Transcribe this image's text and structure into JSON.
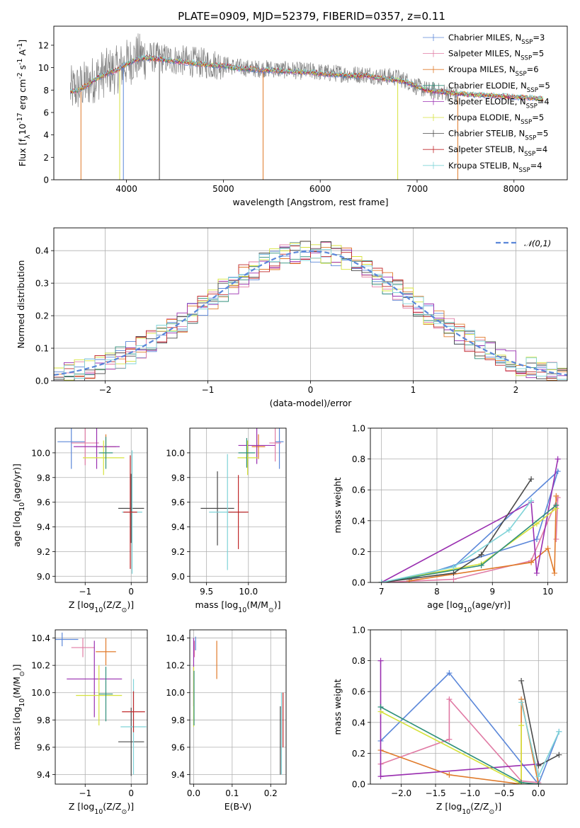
{
  "figure": {
    "title": "PLATE=0909, MJD=52379, FIBERID=0357, z=0.11"
  },
  "series_legend": [
    {
      "label": "Chabrier MILES, N$_{SSP}$=3",
      "color": "#5b87d9"
    },
    {
      "label": "Salpeter MILES, N$_{SSP}$=5",
      "color": "#e07aa4"
    },
    {
      "label": "Kroupa MILES, N$_{SSP}$=6",
      "color": "#e07a2a"
    },
    {
      "label": "Chabrier ELODIE, N$_{SSP}$=5",
      "color": "#2f8f7a"
    },
    {
      "label": "Salpeter ELODIE, N$_{SSP}$=4",
      "color": "#9a2fb0"
    },
    {
      "label": "Kroupa ELODIE, N$_{SSP}$=5",
      "color": "#d6e23b"
    },
    {
      "label": "Chabrier STELIB, N$_{SSP}$=5",
      "color": "#4a4a4a"
    },
    {
      "label": "Salpeter STELIB, N$_{SSP}$=4",
      "color": "#c0282a"
    },
    {
      "label": "Kroupa STELIB, N$_{SSP}$=4",
      "color": "#7fd3d8"
    }
  ],
  "chart_data": [
    {
      "id": "spectrum",
      "type": "line",
      "xlabel": "wavelength [Angstrom, rest frame]",
      "ylabel": "Flux [f$_{\\lambda}$10$^{-17}$ erg cm$^{-2}$ s$^{-1}$ A$^{-1}$]",
      "xlim": [
        3250,
        8550
      ],
      "ylim": [
        0,
        13.7
      ],
      "xticks": [
        4000,
        5000,
        6000,
        7000,
        8000
      ],
      "yticks": [
        0,
        2,
        4,
        6,
        8,
        10,
        12
      ],
      "grid": false,
      "legend": "upper right",
      "data_color": "#808080",
      "data_x": [
        3420,
        3500,
        3600,
        3700,
        3800,
        3900,
        4000,
        4100,
        4200,
        4300,
        4400,
        4500,
        4600,
        4700,
        4800,
        4900,
        5000,
        5100,
        5200,
        5300,
        5400,
        5500,
        5600,
        5700,
        5800,
        5900,
        6000,
        6100,
        6200,
        6300,
        6400,
        6500,
        6600,
        6700,
        6800,
        6900,
        7000,
        7100,
        7200,
        7300,
        7400
      ],
      "data_y": [
        8.0,
        8.2,
        8.6,
        9.2,
        9.6,
        9.8,
        10.4,
        10.9,
        11.0,
        10.9,
        10.8,
        10.7,
        10.6,
        10.5,
        10.4,
        10.3,
        10.3,
        10.1,
        10.0,
        9.9,
        9.9,
        9.9,
        9.8,
        9.8,
        9.7,
        9.7,
        9.6,
        9.5,
        9.5,
        9.4,
        9.4,
        9.4,
        9.2,
        9.2,
        9.1,
        8.8,
        8.3,
        8.0,
        7.9,
        7.8,
        7.6
      ],
      "model_x": [
        3420,
        3500,
        3600,
        3700,
        3800,
        3900,
        4000,
        4100,
        4200,
        4300,
        4400,
        4500,
        4600,
        4700,
        4800,
        4900,
        5000,
        5100,
        5200,
        5300,
        5400,
        5500,
        5600,
        5700,
        5800,
        5900,
        6000,
        6100,
        6200,
        6300,
        6400,
        6500,
        6600,
        6700,
        6800,
        6900,
        7000,
        7100,
        7200,
        7300,
        7400,
        7600,
        7800,
        8000,
        8200,
        8300
      ],
      "model_y": [
        7.8,
        8.0,
        8.5,
        9.1,
        9.5,
        9.8,
        10.3,
        10.7,
        10.9,
        10.8,
        10.7,
        10.6,
        10.5,
        10.4,
        10.3,
        10.2,
        10.2,
        10.0,
        9.9,
        9.9,
        9.8,
        9.8,
        9.7,
        9.7,
        9.6,
        9.6,
        9.5,
        9.4,
        9.4,
        9.3,
        9.3,
        9.3,
        9.1,
        9.0,
        8.9,
        8.7,
        8.3,
        8.0,
        7.9,
        7.8,
        7.7,
        7.6,
        7.5,
        7.4,
        7.3,
        7.2
      ]
    },
    {
      "id": "residuals",
      "type": "line",
      "xlabel": "(data-model)/error",
      "ylabel": "Normed distribution",
      "xlim": [
        -2.5,
        2.5
      ],
      "ylim": [
        0,
        0.47
      ],
      "xticks": [
        -2,
        -1,
        0,
        1,
        2
      ],
      "yticks": [
        0.0,
        0.1,
        0.2,
        0.3,
        0.4
      ],
      "grid": true,
      "legend": "upper right",
      "reference": {
        "label": "$\\mathcal{N}(0,1)$",
        "color": "#5b87d9",
        "mu": 0,
        "sigma": 1
      },
      "bin_width": 0.1
    },
    {
      "id": "age_vs_Z",
      "type": "scatter",
      "xlabel": "Z [log$_{10}$(Z/Z$_\\odot$)]",
      "ylabel": "age  [log$_{10}$(age/yr)]",
      "xlim": [
        -1.65,
        0.35
      ],
      "ylim": [
        8.95,
        10.2
      ],
      "xticks": [
        -1,
        0
      ],
      "yticks": [
        9.0,
        9.2,
        9.4,
        9.6,
        9.8,
        10.0
      ],
      "grid": true,
      "points": [
        {
          "x": -1.3,
          "y": 10.09,
          "xerr": 0.3,
          "yerr": 0.22,
          "series": 0
        },
        {
          "x": -1.0,
          "y": 10.08,
          "xerr": 0.3,
          "yerr": 0.18,
          "series": 1
        },
        {
          "x": -0.55,
          "y": 10.05,
          "xerr": 0.22,
          "yerr": 0.1,
          "series": 2
        },
        {
          "x": -0.75,
          "y": 10.05,
          "xerr": 0.5,
          "yerr": 0.18,
          "series": 4
        },
        {
          "x": -0.6,
          "y": 9.96,
          "xerr": 0.45,
          "yerr": 0.14,
          "series": 5
        },
        {
          "x": -0.55,
          "y": 10.0,
          "xerr": 0.15,
          "yerr": 0.13,
          "series": 3
        },
        {
          "x": 0.0,
          "y": 9.55,
          "xerr": 0.28,
          "yerr": 0.28,
          "series": 6
        },
        {
          "x": 0.02,
          "y": 9.52,
          "xerr": 0.22,
          "yerr": 0.5,
          "series": 8
        },
        {
          "x": -0.02,
          "y": 9.52,
          "xerr": 0.15,
          "yerr": 0.46,
          "series": 7
        }
      ]
    },
    {
      "id": "age_vs_mass",
      "type": "scatter",
      "xlabel": "mass [log$_{10}$(M/M$_\\odot$)]",
      "ylabel": "",
      "xlim": [
        9.3,
        10.45
      ],
      "ylim": [
        8.95,
        10.2
      ],
      "xticks": [
        9.5,
        10.0
      ],
      "yticks": [
        9.0,
        9.2,
        9.4,
        9.6,
        9.8,
        10.0
      ],
      "grid": true,
      "points": [
        {
          "x": 10.37,
          "y": 10.09,
          "xerr": 0.05,
          "yerr": 0.22,
          "series": 0
        },
        {
          "x": 10.32,
          "y": 10.08,
          "xerr": 0.07,
          "yerr": 0.15,
          "series": 1
        },
        {
          "x": 10.12,
          "y": 10.05,
          "xerr": 0.08,
          "yerr": 0.1,
          "series": 2
        },
        {
          "x": 10.1,
          "y": 10.06,
          "xerr": 0.22,
          "yerr": 0.15,
          "series": 4
        },
        {
          "x": 9.99,
          "y": 9.96,
          "xerr": 0.12,
          "yerr": 0.14,
          "series": 5
        },
        {
          "x": 9.98,
          "y": 10.0,
          "xerr": 0.1,
          "yerr": 0.12,
          "series": 3
        },
        {
          "x": 9.63,
          "y": 9.55,
          "xerr": 0.2,
          "yerr": 0.3,
          "series": 6
        },
        {
          "x": 9.75,
          "y": 9.52,
          "xerr": 0.22,
          "yerr": 0.47,
          "series": 8
        },
        {
          "x": 9.88,
          "y": 9.52,
          "xerr": 0.12,
          "yerr": 0.3,
          "series": 7
        }
      ]
    },
    {
      "id": "weight_vs_age",
      "type": "line",
      "xlabel": "age  [log$_{10}$(age/yr)]",
      "ylabel": "mass weight",
      "xlim": [
        6.8,
        10.35
      ],
      "ylim": [
        0,
        1.0
      ],
      "xticks": [
        7,
        8,
        9,
        10
      ],
      "yticks": [
        0.0,
        0.2,
        0.4,
        0.6,
        0.8,
        1.0
      ],
      "grid": true,
      "series": [
        {
          "series": 0,
          "x": [
            7.5,
            9.8,
            10.18,
            8.3
          ],
          "y": [
            0.02,
            0.28,
            0.72,
            0.1
          ]
        },
        {
          "series": 1,
          "x": [
            7.0,
            8.3,
            9.7,
            10.18,
            10.15
          ],
          "y": [
            0.0,
            0.02,
            0.14,
            0.55,
            0.28
          ]
        },
        {
          "series": 2,
          "x": [
            7.5,
            9.7,
            10.0,
            10.12,
            10.15
          ],
          "y": [
            0.01,
            0.13,
            0.22,
            0.06,
            0.56
          ]
        },
        {
          "series": 4,
          "x": [
            7.0,
            9.7,
            9.8,
            10.18
          ],
          "y": [
            0.0,
            0.52,
            0.06,
            0.8
          ]
        },
        {
          "series": 5,
          "x": [
            7.0,
            8.8,
            9.8,
            10.15
          ],
          "y": [
            0.0,
            0.12,
            0.38,
            0.48
          ]
        },
        {
          "series": 3,
          "x": [
            7.0,
            8.8,
            10.15
          ],
          "y": [
            0.0,
            0.11,
            0.5
          ]
        },
        {
          "series": 6,
          "x": [
            7.0,
            8.3,
            8.8,
            9.7
          ],
          "y": [
            0.0,
            0.06,
            0.18,
            0.67
          ]
        },
        {
          "series": 8,
          "x": [
            7.0,
            8.3,
            9.3,
            9.7
          ],
          "y": [
            0.0,
            0.1,
            0.34,
            0.53
          ]
        }
      ]
    },
    {
      "id": "mass_vs_Z",
      "type": "scatter",
      "xlabel": "Z [log$_{10}$(Z/Z$_\\odot$)]",
      "ylabel": "mass [log$_{10}$(M/M$_\\odot$)]",
      "xlim": [
        -1.65,
        0.35
      ],
      "ylim": [
        9.33,
        10.46
      ],
      "xticks": [
        -1,
        0
      ],
      "yticks": [
        9.4,
        9.6,
        9.8,
        10.0,
        10.2,
        10.4
      ],
      "grid": true,
      "points": [
        {
          "x": -1.5,
          "y": 10.39,
          "xerr": 0.35,
          "yerr": 0.05,
          "series": 0
        },
        {
          "x": -1.05,
          "y": 10.33,
          "xerr": 0.25,
          "yerr": 0.07,
          "series": 1
        },
        {
          "x": -0.55,
          "y": 10.3,
          "xerr": 0.22,
          "yerr": 0.1,
          "series": 2
        },
        {
          "x": -0.8,
          "y": 10.1,
          "xerr": 0.6,
          "yerr": 0.28,
          "series": 4
        },
        {
          "x": -0.7,
          "y": 9.98,
          "xerr": 0.5,
          "yerr": 0.22,
          "series": 5
        },
        {
          "x": -0.55,
          "y": 9.99,
          "xerr": 0.15,
          "yerr": 0.2,
          "series": 3
        },
        {
          "x": 0.0,
          "y": 9.64,
          "xerr": 0.28,
          "yerr": 0.25,
          "series": 6
        },
        {
          "x": 0.05,
          "y": 9.75,
          "xerr": 0.28,
          "yerr": 0.35,
          "series": 8
        },
        {
          "x": 0.05,
          "y": 9.86,
          "xerr": 0.25,
          "yerr": 0.15,
          "series": 7
        }
      ]
    },
    {
      "id": "mass_vs_EBV",
      "type": "scatter",
      "xlabel": "E(B-V)",
      "ylabel": "",
      "xlim": [
        -0.01,
        0.24
      ],
      "ylim": [
        9.33,
        10.46
      ],
      "xticks": [
        0.0,
        0.1,
        0.2
      ],
      "yticks": [
        9.4,
        9.6,
        9.8,
        10.0,
        10.2,
        10.4
      ],
      "grid": true,
      "points": [
        {
          "x": 0.005,
          "y": 10.36,
          "xerr": 0,
          "yerr": 0.05,
          "series": 0
        },
        {
          "x": 0.002,
          "y": 10.32,
          "xerr": 0,
          "yerr": 0.06,
          "series": 1
        },
        {
          "x": 0.06,
          "y": 10.24,
          "xerr": 0,
          "yerr": 0.14,
          "series": 2
        },
        {
          "x": 0.0,
          "y": 10.15,
          "xerr": 0,
          "yerr": 0.25,
          "series": 4
        },
        {
          "x": 0.0,
          "y": 9.97,
          "xerr": 0,
          "yerr": 0.22,
          "series": 5
        },
        {
          "x": 0.001,
          "y": 9.96,
          "xerr": 0,
          "yerr": 0.2,
          "series": 3
        },
        {
          "x": 0.225,
          "y": 9.65,
          "xerr": 0,
          "yerr": 0.25,
          "series": 6
        },
        {
          "x": 0.228,
          "y": 9.7,
          "xerr": 0,
          "yerr": 0.3,
          "series": 8
        },
        {
          "x": 0.232,
          "y": 9.8,
          "xerr": 0,
          "yerr": 0.2,
          "series": 7
        }
      ]
    },
    {
      "id": "weight_vs_Z",
      "type": "line",
      "xlabel": "Z [log$_{10}$(Z/Z$_\\odot$)]",
      "ylabel": "mass weight",
      "xlim": [
        -2.45,
        0.42
      ],
      "ylim": [
        0,
        1.0
      ],
      "xticks": [
        -2.0,
        -1.5,
        -1.0,
        -0.5,
        0.0
      ],
      "yticks": [
        0.0,
        0.2,
        0.4,
        0.6,
        0.8,
        1.0
      ],
      "grid": true,
      "series": [
        {
          "series": 0,
          "x": [
            -2.3,
            -1.3,
            0.0,
            0.3
          ],
          "y": [
            0.28,
            0.72,
            0.0,
            0.34
          ]
        },
        {
          "series": 1,
          "x": [
            -2.3,
            -1.3,
            -1.3,
            -0.25,
            0.0
          ],
          "y": [
            0.13,
            0.29,
            0.55,
            0.02,
            0.01
          ]
        },
        {
          "series": 2,
          "x": [
            -2.3,
            -1.3,
            -0.25,
            -0.25,
            0.0
          ],
          "y": [
            0.22,
            0.06,
            0.0,
            0.55,
            0.0
          ]
        },
        {
          "series": 4,
          "x": [
            -2.3,
            -2.3,
            0.0
          ],
          "y": [
            0.8,
            0.05,
            0.13
          ]
        },
        {
          "series": 5,
          "x": [
            -2.3,
            -0.25,
            -0.25
          ],
          "y": [
            0.47,
            0.0,
            0.38
          ]
        },
        {
          "series": 3,
          "x": [
            -2.3,
            -0.25,
            0.0
          ],
          "y": [
            0.5,
            0.01,
            0.0
          ]
        },
        {
          "series": 6,
          "x": [
            -0.25,
            0.0,
            0.3
          ],
          "y": [
            0.67,
            0.12,
            0.19
          ]
        },
        {
          "series": 8,
          "x": [
            -0.25,
            0.0,
            0.3
          ],
          "y": [
            0.53,
            0.05,
            0.34
          ]
        }
      ]
    }
  ]
}
